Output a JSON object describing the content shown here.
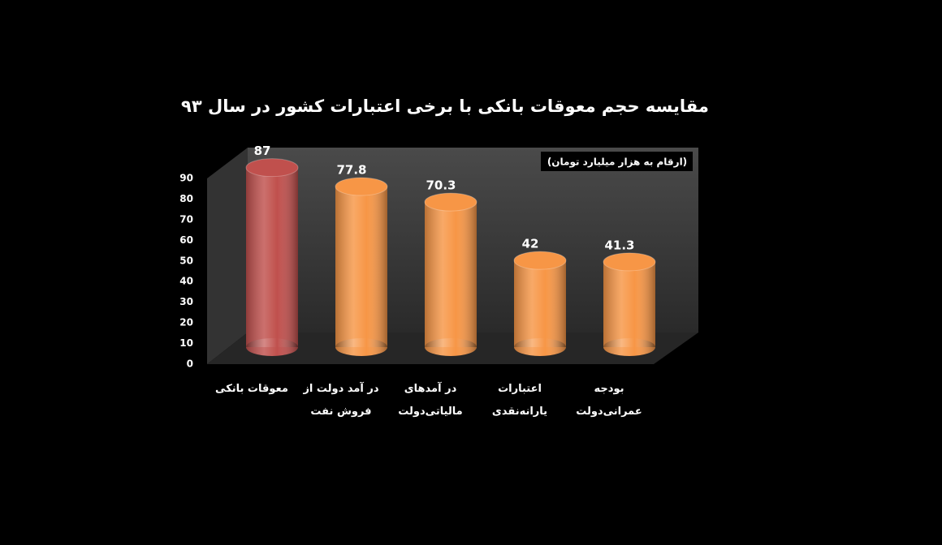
{
  "chart_data": {
    "type": "bar",
    "title": "مقایسه حجم معوقات بانکی با برخی اعتبارات کشور در سال ۹۳",
    "subtitle": "(ارقام به هزار میلیارد تومان)",
    "categories": [
      "معوقات بانکی",
      "در آمد دولت از\nفروش نفت",
      "در آمدهای\nمالیاتی‌دولت",
      "اعتبارات\nیارانه‌نقدی",
      "بودجه\nعمرانی‌دولت"
    ],
    "values": [
      87,
      77.8,
      70.3,
      42,
      41.3
    ],
    "colors": [
      "#c0504d",
      "#f79646",
      "#f79646",
      "#f79646",
      "#f79646"
    ],
    "ylim": [
      0,
      90
    ],
    "yticks": [
      0,
      10,
      20,
      30,
      40,
      50,
      60,
      70,
      80,
      90
    ],
    "grid": false
  }
}
